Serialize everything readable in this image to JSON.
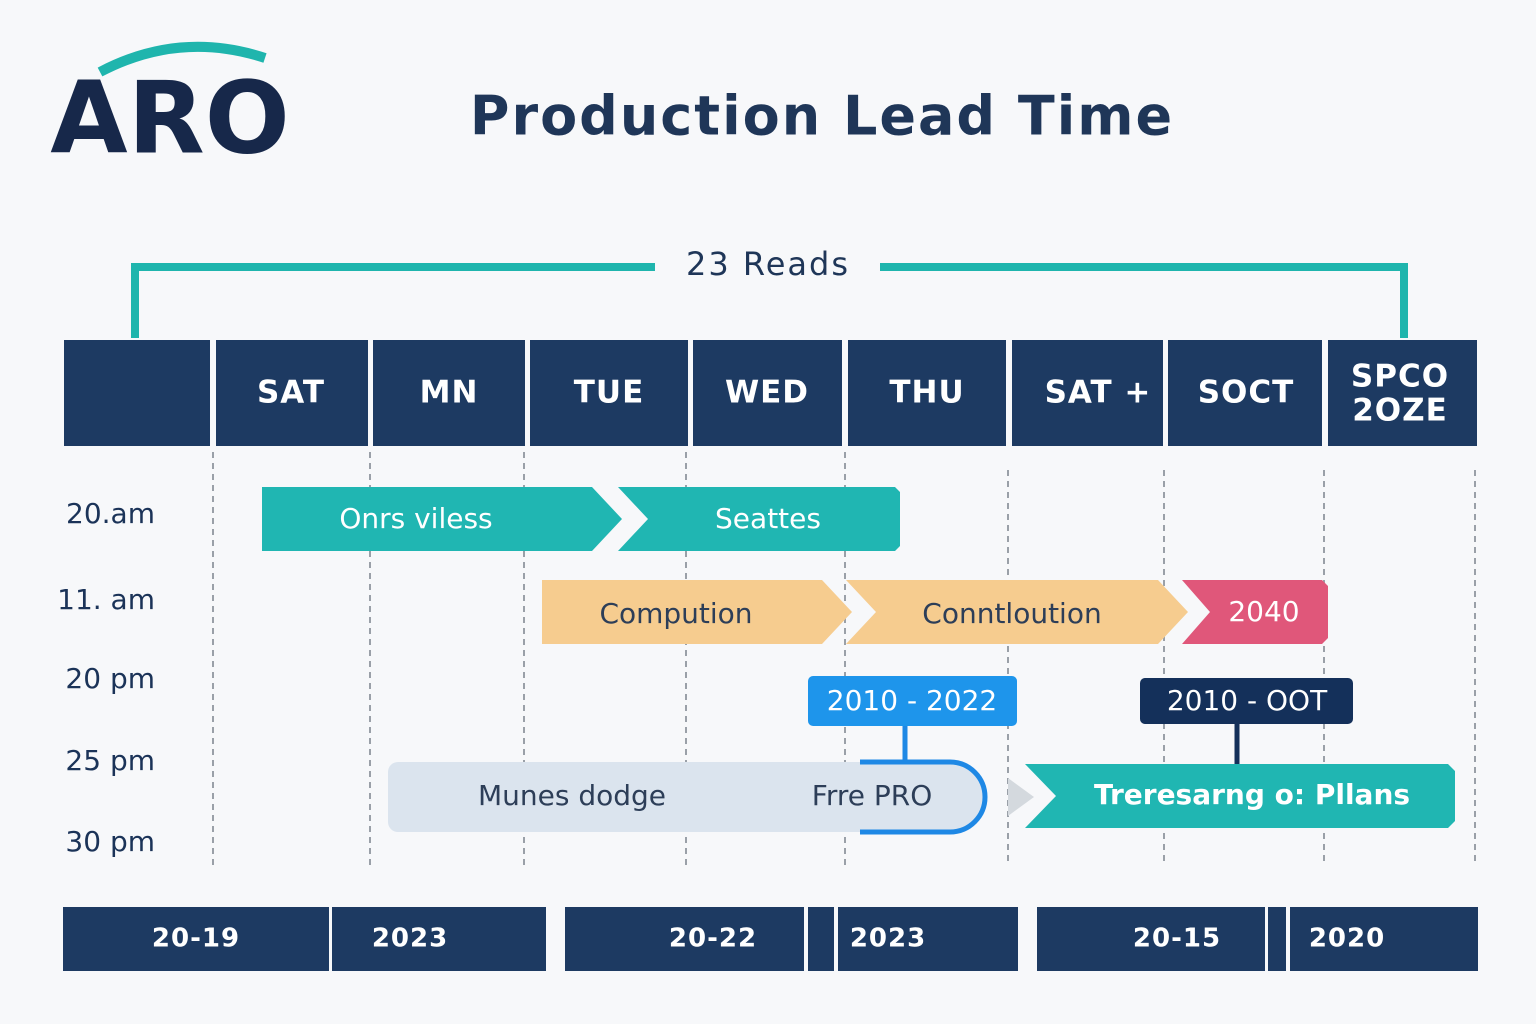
{
  "logo": "ARO",
  "title": "Production Lead Time",
  "span_label": "23 Reads",
  "header": {
    "columns": [
      "SAT",
      "MN",
      "TUE",
      "WED",
      "THU",
      "SAT +",
      "SOCT"
    ],
    "last_column": [
      "SPCO",
      "2OZE"
    ]
  },
  "row_labels": [
    "20.am",
    "11. am",
    "20 pm",
    "25 pm",
    "30 pm"
  ],
  "tasks": [
    "Onrs viless",
    "Seattes",
    "Compution",
    "Conntloution",
    "2040",
    "Munes dodge",
    "Frre PRO",
    "Treresarng o: Pllans"
  ],
  "callouts": [
    "2010 - 2022",
    "2010 - OOT"
  ],
  "footer": [
    "20-19",
    "2023",
    "20-22",
    "2023",
    "20-15",
    "2020"
  ]
}
